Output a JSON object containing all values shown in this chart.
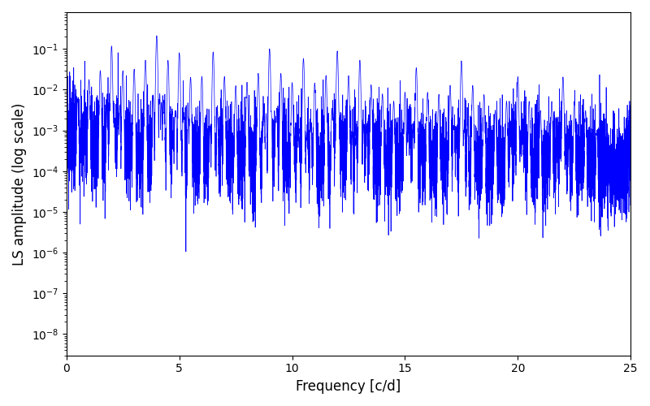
{
  "title": "",
  "xlabel": "Frequency [c/d]",
  "ylabel": "LS amplitude (log scale)",
  "line_color": "#0000ff",
  "line_width": 0.5,
  "xlim": [
    0,
    25
  ],
  "ylim": [
    3e-09,
    0.8
  ],
  "freq_min": 0.0,
  "freq_max": 25.0,
  "n_points": 8000,
  "seed": 123,
  "peak_freqs": [
    2.0,
    4.0,
    5.0,
    6.5,
    9.0,
    10.5,
    12.0,
    13.0,
    15.5,
    17.5,
    20.0,
    22.0
  ],
  "peak_heights": [
    0.12,
    0.22,
    0.085,
    0.09,
    0.11,
    0.065,
    0.1,
    0.06,
    0.04,
    0.06,
    0.025,
    0.025
  ],
  "noise_base": 0.0002,
  "noise_sigma": 1.5,
  "background_color": "#ffffff",
  "figsize": [
    8.0,
    5.0
  ],
  "dpi": 100
}
